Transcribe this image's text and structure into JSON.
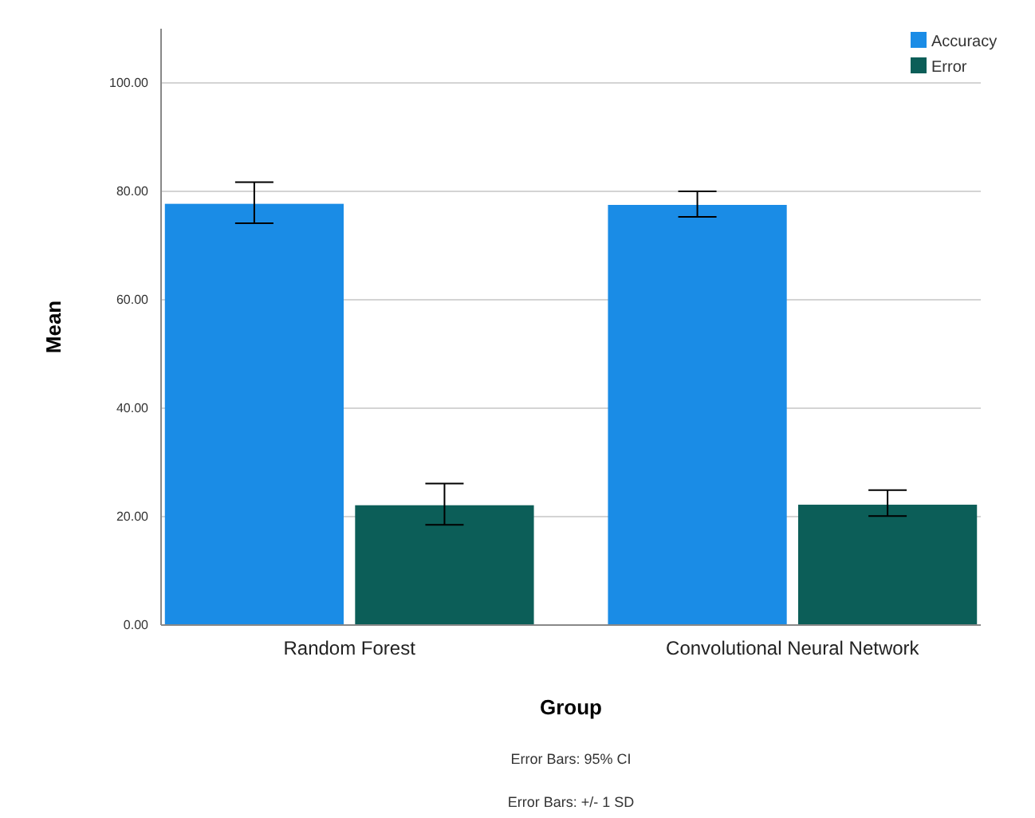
{
  "chart_data": {
    "type": "bar",
    "categories": [
      "Random Forest",
      "Convolutional Neural Network"
    ],
    "series": [
      {
        "name": "Accuracy",
        "color": "#1a8ce6",
        "values": [
          77.7,
          77.5
        ],
        "errors": [
          [
            74.1,
            81.7
          ],
          [
            75.3,
            80.0
          ]
        ]
      },
      {
        "name": "Error",
        "color": "#0c5e58",
        "values": [
          22.1,
          22.2
        ],
        "errors": [
          [
            18.5,
            26.1
          ],
          [
            20.1,
            24.9
          ]
        ]
      }
    ],
    "xlabel": "Group",
    "ylabel": "Mean",
    "ylim": [
      0,
      110
    ],
    "yticks": [
      {
        "value": 0,
        "label": "0.00"
      },
      {
        "value": 20,
        "label": "20.00"
      },
      {
        "value": 40,
        "label": "40.00"
      },
      {
        "value": 60,
        "label": "60.00"
      },
      {
        "value": 80,
        "label": "80.00"
      },
      {
        "value": 100,
        "label": "100.00"
      }
    ],
    "grid": "y",
    "legend": "top right",
    "annotations": [
      "Error Bars: 95% CI",
      "Error Bars: +/- 1 SD"
    ]
  }
}
